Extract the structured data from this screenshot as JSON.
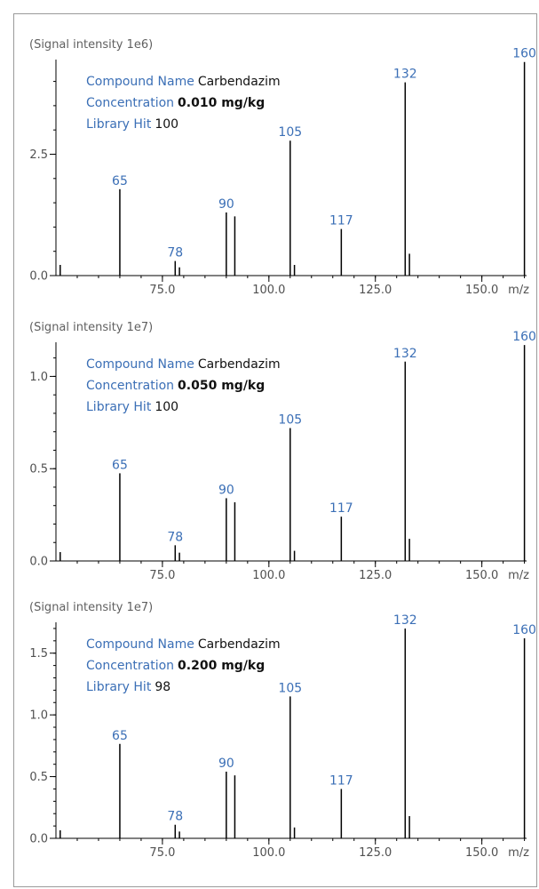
{
  "colors": {
    "accent": "#3b6fb6",
    "bar": "#000000",
    "axis_text": "#505050"
  },
  "labels": {
    "name_key": "Compound Name",
    "conc_key": "Concentration",
    "hit_key": "Library Hit",
    "x_unit": "m/z"
  },
  "chart_data": [
    {
      "type": "bar",
      "ytitle": "(Signal intensity 1e6)",
      "compound": "Carbendazim",
      "concentration": "0.010 mg/kg",
      "library_hit": "100",
      "xlim": [
        50,
        160.5
      ],
      "ylim": [
        0,
        4.45
      ],
      "x_ticks": [
        75.0,
        100.0,
        125.0,
        150.0
      ],
      "x_tick_labels": [
        "75.0",
        "100.0",
        "125.0",
        "150.0"
      ],
      "y_ticks": [
        0.0,
        2.5
      ],
      "y_tick_labels": [
        "0.0",
        "2.5"
      ],
      "peaks": [
        {
          "mz": 51,
          "y": 0.22,
          "label": ""
        },
        {
          "mz": 65,
          "y": 1.78,
          "label": "65"
        },
        {
          "mz": 78,
          "y": 0.3,
          "label": "78"
        },
        {
          "mz": 79,
          "y": 0.17,
          "label": ""
        },
        {
          "mz": 90,
          "y": 1.3,
          "label": "90"
        },
        {
          "mz": 92,
          "y": 1.22,
          "label": ""
        },
        {
          "mz": 105,
          "y": 2.78,
          "label": "105"
        },
        {
          "mz": 106,
          "y": 0.22,
          "label": ""
        },
        {
          "mz": 117,
          "y": 0.96,
          "label": "117"
        },
        {
          "mz": 132,
          "y": 3.98,
          "label": "132"
        },
        {
          "mz": 133,
          "y": 0.45,
          "label": ""
        },
        {
          "mz": 160,
          "y": 4.4,
          "label": "160"
        }
      ]
    },
    {
      "type": "bar",
      "ytitle": "(Signal intensity 1e7)",
      "compound": "Carbendazim",
      "concentration": "0.050 mg/kg",
      "library_hit": "100",
      "xlim": [
        50,
        160.5
      ],
      "ylim": [
        0,
        1.185
      ],
      "x_ticks": [
        75.0,
        100.0,
        125.0,
        150.0
      ],
      "x_tick_labels": [
        "75.0",
        "100.0",
        "125.0",
        "150.0"
      ],
      "y_ticks": [
        0.0,
        0.5,
        1.0
      ],
      "y_tick_labels": [
        "0.0",
        "0.5",
        "1.0"
      ],
      "peaks": [
        {
          "mz": 51,
          "y": 0.048,
          "label": ""
        },
        {
          "mz": 65,
          "y": 0.475,
          "label": "65"
        },
        {
          "mz": 78,
          "y": 0.085,
          "label": "78"
        },
        {
          "mz": 79,
          "y": 0.045,
          "label": ""
        },
        {
          "mz": 90,
          "y": 0.34,
          "label": "90"
        },
        {
          "mz": 92,
          "y": 0.318,
          "label": ""
        },
        {
          "mz": 105,
          "y": 0.72,
          "label": "105"
        },
        {
          "mz": 106,
          "y": 0.055,
          "label": ""
        },
        {
          "mz": 117,
          "y": 0.24,
          "label": "117"
        },
        {
          "mz": 132,
          "y": 1.08,
          "label": "132"
        },
        {
          "mz": 133,
          "y": 0.12,
          "label": ""
        },
        {
          "mz": 160,
          "y": 1.17,
          "label": "160"
        }
      ]
    },
    {
      "type": "bar",
      "ytitle": "(Signal intensity 1e7)",
      "compound": "Carbendazim",
      "concentration": "0.200 mg/kg",
      "library_hit": "98",
      "xlim": [
        50,
        160.5
      ],
      "ylim": [
        0,
        1.75
      ],
      "x_ticks": [
        75.0,
        100.0,
        125.0,
        150.0
      ],
      "x_tick_labels": [
        "75.0",
        "100.0",
        "125.0",
        "150.0"
      ],
      "y_ticks": [
        0.0,
        0.5,
        1.0,
        1.5
      ],
      "y_tick_labels": [
        "0.0",
        "0.5",
        "1.0",
        "1.5"
      ],
      "peaks": [
        {
          "mz": 51,
          "y": 0.065,
          "label": ""
        },
        {
          "mz": 65,
          "y": 0.765,
          "label": "65"
        },
        {
          "mz": 78,
          "y": 0.11,
          "label": "78"
        },
        {
          "mz": 79,
          "y": 0.055,
          "label": ""
        },
        {
          "mz": 90,
          "y": 0.54,
          "label": "90"
        },
        {
          "mz": 92,
          "y": 0.51,
          "label": ""
        },
        {
          "mz": 105,
          "y": 1.15,
          "label": "105"
        },
        {
          "mz": 106,
          "y": 0.088,
          "label": ""
        },
        {
          "mz": 117,
          "y": 0.4,
          "label": "117"
        },
        {
          "mz": 132,
          "y": 1.7,
          "label": "132"
        },
        {
          "mz": 133,
          "y": 0.18,
          "label": ""
        },
        {
          "mz": 160,
          "y": 1.62,
          "label": "160"
        }
      ]
    }
  ]
}
